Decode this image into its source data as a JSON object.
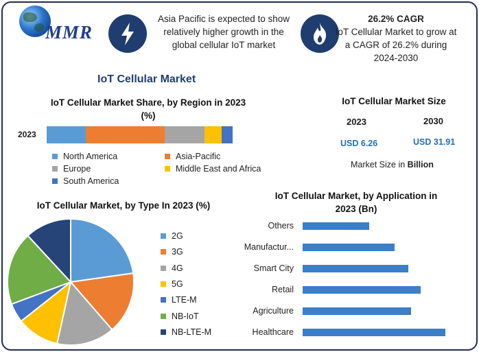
{
  "brand": {
    "logo_text": "MMR"
  },
  "header": {
    "info1": "Asia Pacific is expected to show relatively higher growth in the global cellular IoT market",
    "info2_title": "26.2% CAGR",
    "info2_text": "IoT Cellular Market to grow at a CAGR of 26.2% during 2024-2030",
    "icon1": "lightning-icon",
    "icon2": "flame-icon",
    "icon_bg_color": "#1f3d6e"
  },
  "main_title": "IoT Cellular Market",
  "market_size": {
    "title": "IoT Cellular Market Size",
    "year1": "2023",
    "year2": "2030",
    "value1": "USD 6.26",
    "value2": "USD 31.91",
    "note_prefix": "Market Size in ",
    "note_unit": "Billion"
  },
  "chart_data": [
    {
      "type": "bar",
      "orientation": "horizontal-stacked",
      "title": "IoT Cellular Market Share, by Region in 2023 (%)",
      "categories": [
        "2023"
      ],
      "series": [
        {
          "name": "North America",
          "values": [
            21
          ],
          "color": "#5b9bd5"
        },
        {
          "name": "Asia-Pacific",
          "values": [
            42
          ],
          "color": "#ed7d31"
        },
        {
          "name": "Europe",
          "values": [
            21
          ],
          "color": "#a5a5a5"
        },
        {
          "name": "Middle East and Africa",
          "values": [
            9
          ],
          "color": "#ffc000"
        },
        {
          "name": "South America",
          "values": [
            6
          ],
          "color": "#4472c4"
        }
      ],
      "legend_placement": "bottom"
    },
    {
      "type": "pie",
      "title": "IoT Cellular Market, by Type In 2023 (%)",
      "categories": [
        "2G",
        "3G",
        "4G",
        "5G",
        "LTE-M",
        "NB-IoT",
        "NB-LTE-M"
      ],
      "values": [
        23,
        16,
        15,
        11,
        5,
        19,
        12
      ],
      "colors": [
        "#5b9bd5",
        "#ed7d31",
        "#a5a5a5",
        "#ffc000",
        "#4472c4",
        "#70ad47",
        "#264478"
      ],
      "legend_placement": "right"
    },
    {
      "type": "bar",
      "orientation": "horizontal",
      "title": "IoT Cellular Market, by Application in 2023 (Bn)",
      "categories": [
        "Others",
        "Manufactur...",
        "Smart City",
        "Retail",
        "Agriculture",
        "Healthcare"
      ],
      "values": [
        0.43,
        0.59,
        0.68,
        0.76,
        0.7,
        0.92
      ],
      "color": "#3a7fc7",
      "grid": false,
      "legend_placement": "none"
    }
  ]
}
